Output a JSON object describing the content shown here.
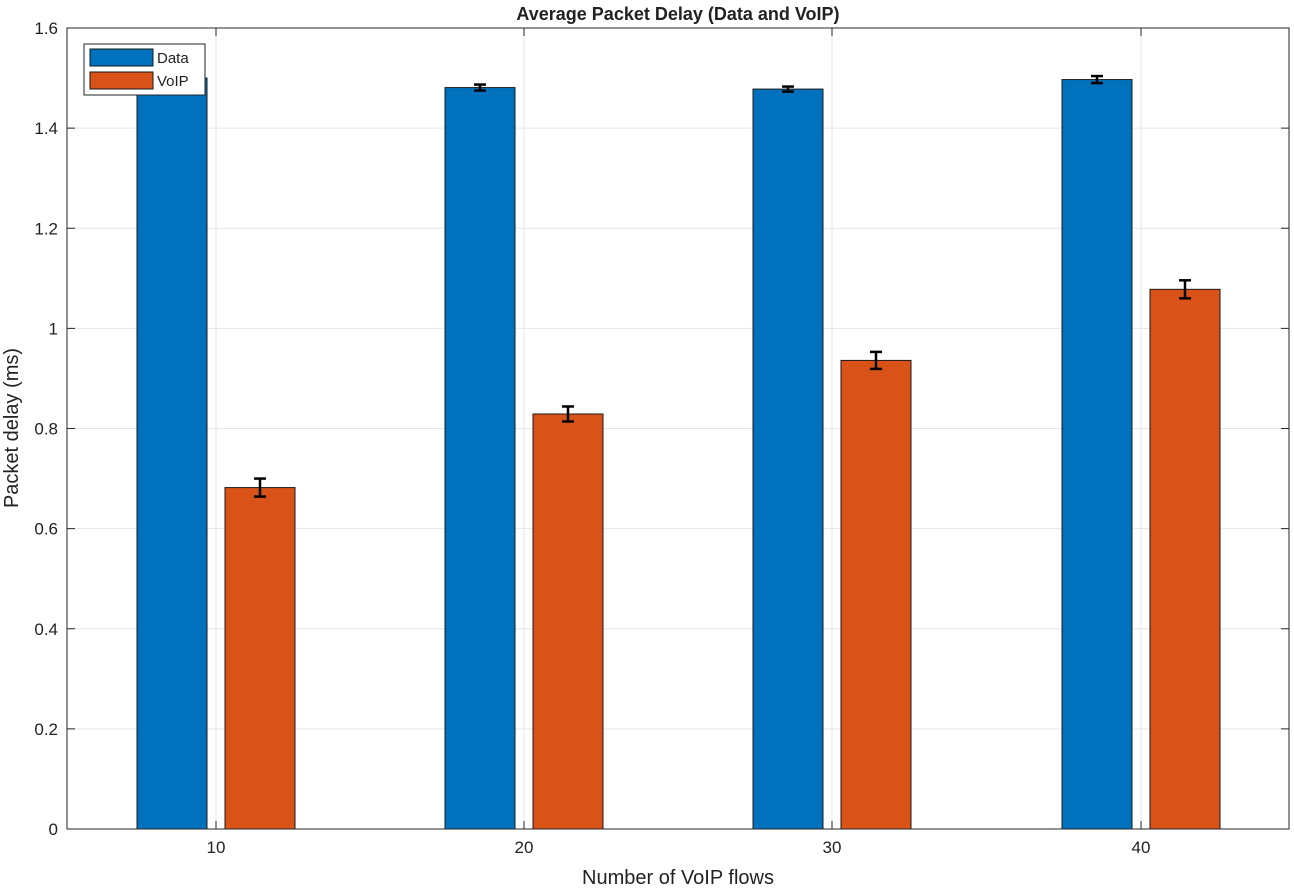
{
  "chart_data": {
    "type": "bar",
    "title": "Average Packet Delay (Data and VoIP)",
    "xlabel": "Number of VoIP flows",
    "ylabel": "Packet delay (ms)",
    "categories": [
      "10",
      "20",
      "30",
      "40"
    ],
    "ylim": [
      0,
      1.6
    ],
    "yticks": [
      0,
      0.2,
      0.4,
      0.6,
      0.8,
      1,
      1.2,
      1.4,
      1.6
    ],
    "ytick_labels": [
      "0",
      "0.2",
      "0.4",
      "0.6",
      "0.8",
      "1",
      "1.2",
      "1.4",
      "1.6"
    ],
    "grid": true,
    "legend_position": "top-left",
    "series": [
      {
        "name": "Data",
        "color": "#0072bd",
        "values": [
          1.5,
          1.481,
          1.478,
          1.497
        ],
        "errors": [
          0.005,
          0.006,
          0.005,
          0.007
        ]
      },
      {
        "name": "VoIP",
        "color": "#d95319",
        "values": [
          0.682,
          0.829,
          0.936,
          1.078
        ],
        "errors": [
          0.018,
          0.015,
          0.017,
          0.018
        ]
      }
    ]
  }
}
